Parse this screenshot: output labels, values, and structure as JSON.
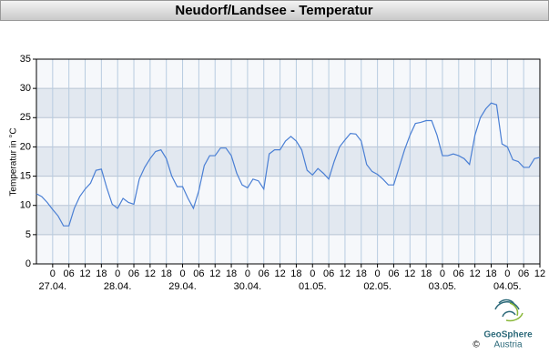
{
  "chart_data": {
    "type": "line",
    "title": "Neudorf/Landsee - Temperatur",
    "y_label": "Temperatur in °C",
    "color": "#4a7fd4",
    "grid": true,
    "xlim": [
      0,
      186
    ],
    "x": [
      0,
      2,
      4,
      6,
      8,
      10,
      12,
      14,
      16,
      18,
      20,
      22,
      24,
      26,
      28,
      30,
      32,
      34,
      36,
      38,
      40,
      42,
      44,
      46,
      48,
      50,
      52,
      54,
      56,
      58,
      60,
      62,
      64,
      66,
      68,
      70,
      72,
      74,
      76,
      78,
      80,
      82,
      84,
      86,
      88,
      90,
      92,
      94,
      96,
      98,
      100,
      102,
      104,
      106,
      108,
      110,
      112,
      114,
      116,
      118,
      120,
      122,
      124,
      126,
      128,
      130,
      132,
      134,
      136,
      138,
      140,
      142,
      144,
      146,
      148,
      150,
      152,
      154,
      156,
      158,
      160,
      162,
      164,
      166,
      168,
      170,
      172,
      174,
      176,
      178,
      180,
      182,
      184,
      186
    ],
    "values": [
      12,
      11.5,
      10.5,
      9.3,
      8.2,
      6.5,
      6.5,
      9.5,
      11.5,
      12.8,
      13.8,
      16,
      16.2,
      13,
      10.2,
      9.5,
      11.2,
      10.5,
      10.2,
      14.5,
      16.5,
      18,
      19.2,
      19.5,
      18,
      15,
      13.2,
      13.2,
      11.2,
      9.5,
      12.5,
      16.8,
      18.5,
      18.5,
      19.8,
      19.8,
      18.5,
      15.5,
      13.5,
      13,
      14.5,
      14.2,
      12.8,
      18.8,
      19.5,
      19.5,
      21,
      21.8,
      21,
      19.5,
      16,
      15.2,
      16.3,
      15.5,
      14.5,
      17.5,
      20,
      21.2,
      22.3,
      22.2,
      21,
      17,
      15.8,
      15.3,
      14.5,
      13.5,
      13.5,
      16.5,
      19.5,
      22,
      24,
      24.2,
      24.5,
      24.5,
      22,
      18.5,
      18.5,
      18.8,
      18.5,
      18,
      17,
      22,
      25,
      26.5,
      27.5,
      27.2,
      20.5,
      20,
      17.8,
      17.5,
      16.5,
      16.5,
      18,
      18.2
    ],
    "ylim": [
      0,
      35
    ],
    "yticks": [
      0,
      5,
      10,
      15,
      20,
      25,
      30,
      35
    ],
    "xticks": [
      {
        "value": 6,
        "label": "0"
      },
      {
        "value": 12,
        "label": "06"
      },
      {
        "value": 18,
        "label": "12"
      },
      {
        "value": 24,
        "label": "18"
      },
      {
        "value": 30,
        "label": "0"
      },
      {
        "value": 36,
        "label": "06"
      },
      {
        "value": 42,
        "label": "12"
      },
      {
        "value": 48,
        "label": "18"
      },
      {
        "value": 54,
        "label": "0"
      },
      {
        "value": 60,
        "label": "06"
      },
      {
        "value": 66,
        "label": "12"
      },
      {
        "value": 72,
        "label": "18"
      },
      {
        "value": 78,
        "label": "0"
      },
      {
        "value": 84,
        "label": "06"
      },
      {
        "value": 90,
        "label": "12"
      },
      {
        "value": 96,
        "label": "18"
      },
      {
        "value": 102,
        "label": "0"
      },
      {
        "value": 108,
        "label": "06"
      },
      {
        "value": 114,
        "label": "12"
      },
      {
        "value": 120,
        "label": "18"
      },
      {
        "value": 126,
        "label": "0"
      },
      {
        "value": 132,
        "label": "06"
      },
      {
        "value": 138,
        "label": "12"
      },
      {
        "value": 144,
        "label": "18"
      },
      {
        "value": 150,
        "label": "0"
      },
      {
        "value": 156,
        "label": "06"
      },
      {
        "value": 162,
        "label": "12"
      },
      {
        "value": 168,
        "label": "18"
      },
      {
        "value": 174,
        "label": "0"
      },
      {
        "value": 180,
        "label": "06"
      },
      {
        "value": 186,
        "label": "12"
      }
    ],
    "date_labels": [
      {
        "value": 6,
        "label": "27.04."
      },
      {
        "value": 30,
        "label": "28.04."
      },
      {
        "value": 54,
        "label": "29.04."
      },
      {
        "value": 78,
        "label": "30.04."
      },
      {
        "value": 102,
        "label": "01.05."
      },
      {
        "value": 126,
        "label": "02.05."
      },
      {
        "value": 150,
        "label": "03.05."
      },
      {
        "value": 174,
        "label": "04.05."
      }
    ],
    "logo": {
      "copyright": "©",
      "name1": "GeoSphere",
      "name2": "Austria"
    }
  }
}
